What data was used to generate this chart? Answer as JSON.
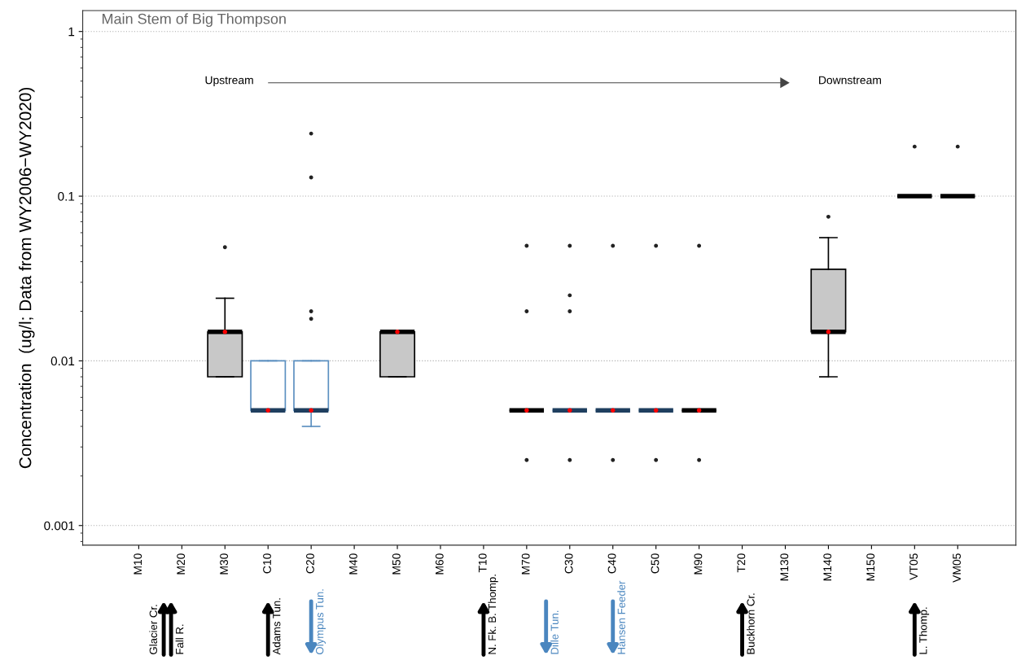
{
  "chart_data": {
    "type": "box",
    "title": "Main Stem of Big Thompson",
    "ylabel": "Concentration  (ug/l; Data from WY2006−WY2020)",
    "categories": [
      "M10",
      "M20",
      "M30",
      "C10",
      "C20",
      "M40",
      "M50",
      "M60",
      "T10",
      "M70",
      "C30",
      "C40",
      "C50",
      "M90",
      "T20",
      "M130",
      "M140",
      "M150",
      "VT05",
      "VM05"
    ],
    "log": "y",
    "ylim": [
      0.00076,
      1.34
    ],
    "yticks": [
      0.001,
      0.01,
      0.1,
      1
    ],
    "grid": "y",
    "series": [
      {
        "color": "#000000",
        "boxes": [
          null,
          null,
          {
            "low": 0.008,
            "q1": 0.008,
            "median": 0.015,
            "q3": 0.015,
            "high": 0.024,
            "mean": 0.015,
            "outliers": [
              0.049
            ]
          },
          null,
          null,
          null,
          {
            "low": 0.008,
            "q1": 0.008,
            "median": 0.015,
            "q3": 0.015,
            "high": 0.015,
            "mean": 0.015
          },
          null,
          null,
          {
            "low": 0.005,
            "q1": 0.005,
            "median": 0.005,
            "q3": 0.005,
            "high": 0.005,
            "mean": 0.005,
            "outliers": [
              0.0025,
              0.02,
              0.05
            ]
          },
          null,
          null,
          null,
          {
            "low": 0.005,
            "q1": 0.005,
            "median": 0.005,
            "q3": 0.005,
            "high": 0.005,
            "mean": 0.005,
            "outliers": [
              0.0025,
              0.05
            ]
          },
          null,
          null,
          {
            "low": 0.008,
            "q1": 0.015,
            "median": 0.015,
            "q3": 0.036,
            "high": 0.056,
            "mean": 0.015,
            "outliers": [
              0.075
            ]
          },
          null,
          {
            "low": 0.1,
            "q1": 0.1,
            "median": 0.1,
            "q3": 0.1,
            "high": 0.1,
            "outliers": [
              0.2
            ]
          },
          {
            "low": 0.1,
            "q1": 0.1,
            "median": 0.1,
            "q3": 0.1,
            "high": 0.1,
            "outliers": [
              0.2
            ]
          }
        ]
      },
      {
        "color": "#5b8fc0",
        "boxes": [
          null,
          null,
          null,
          {
            "low": 0.005,
            "q1": 0.005,
            "median": 0.005,
            "q3": 0.01,
            "high": 0.01,
            "mean": 0.005
          },
          {
            "low": 0.004,
            "q1": 0.005,
            "median": 0.005,
            "q3": 0.01,
            "high": 0.01,
            "mean": 0.005,
            "outliers": [
              0.018,
              0.02,
              0.13,
              0.24
            ]
          },
          null,
          null,
          null,
          null,
          null,
          {
            "low": 0.005,
            "q1": 0.005,
            "median": 0.005,
            "q3": 0.005,
            "high": 0.005,
            "mean": 0.005,
            "outliers": [
              0.0025,
              0.02,
              0.025,
              0.05
            ]
          },
          {
            "low": 0.005,
            "q1": 0.005,
            "median": 0.005,
            "q3": 0.005,
            "high": 0.005,
            "mean": 0.005,
            "outliers": [
              0.0025,
              0.05
            ]
          },
          {
            "low": 0.005,
            "q1": 0.005,
            "median": 0.005,
            "q3": 0.005,
            "high": 0.005,
            "mean": 0.005,
            "outliers": [
              0.0025,
              0.05
            ]
          },
          null,
          null,
          null,
          null,
          null,
          null,
          null
        ]
      }
    ],
    "annotations": [
      "Upstream",
      "Downstream",
      "Glacier Cr.",
      "Fall R.",
      "Adams Tun.",
      "Olympus Tun.",
      "N. Fk. B. Thomp.",
      "Dille Tun.",
      "Hansen Feeder",
      "Buckhorn Cr.",
      "L. Thomp."
    ]
  }
}
